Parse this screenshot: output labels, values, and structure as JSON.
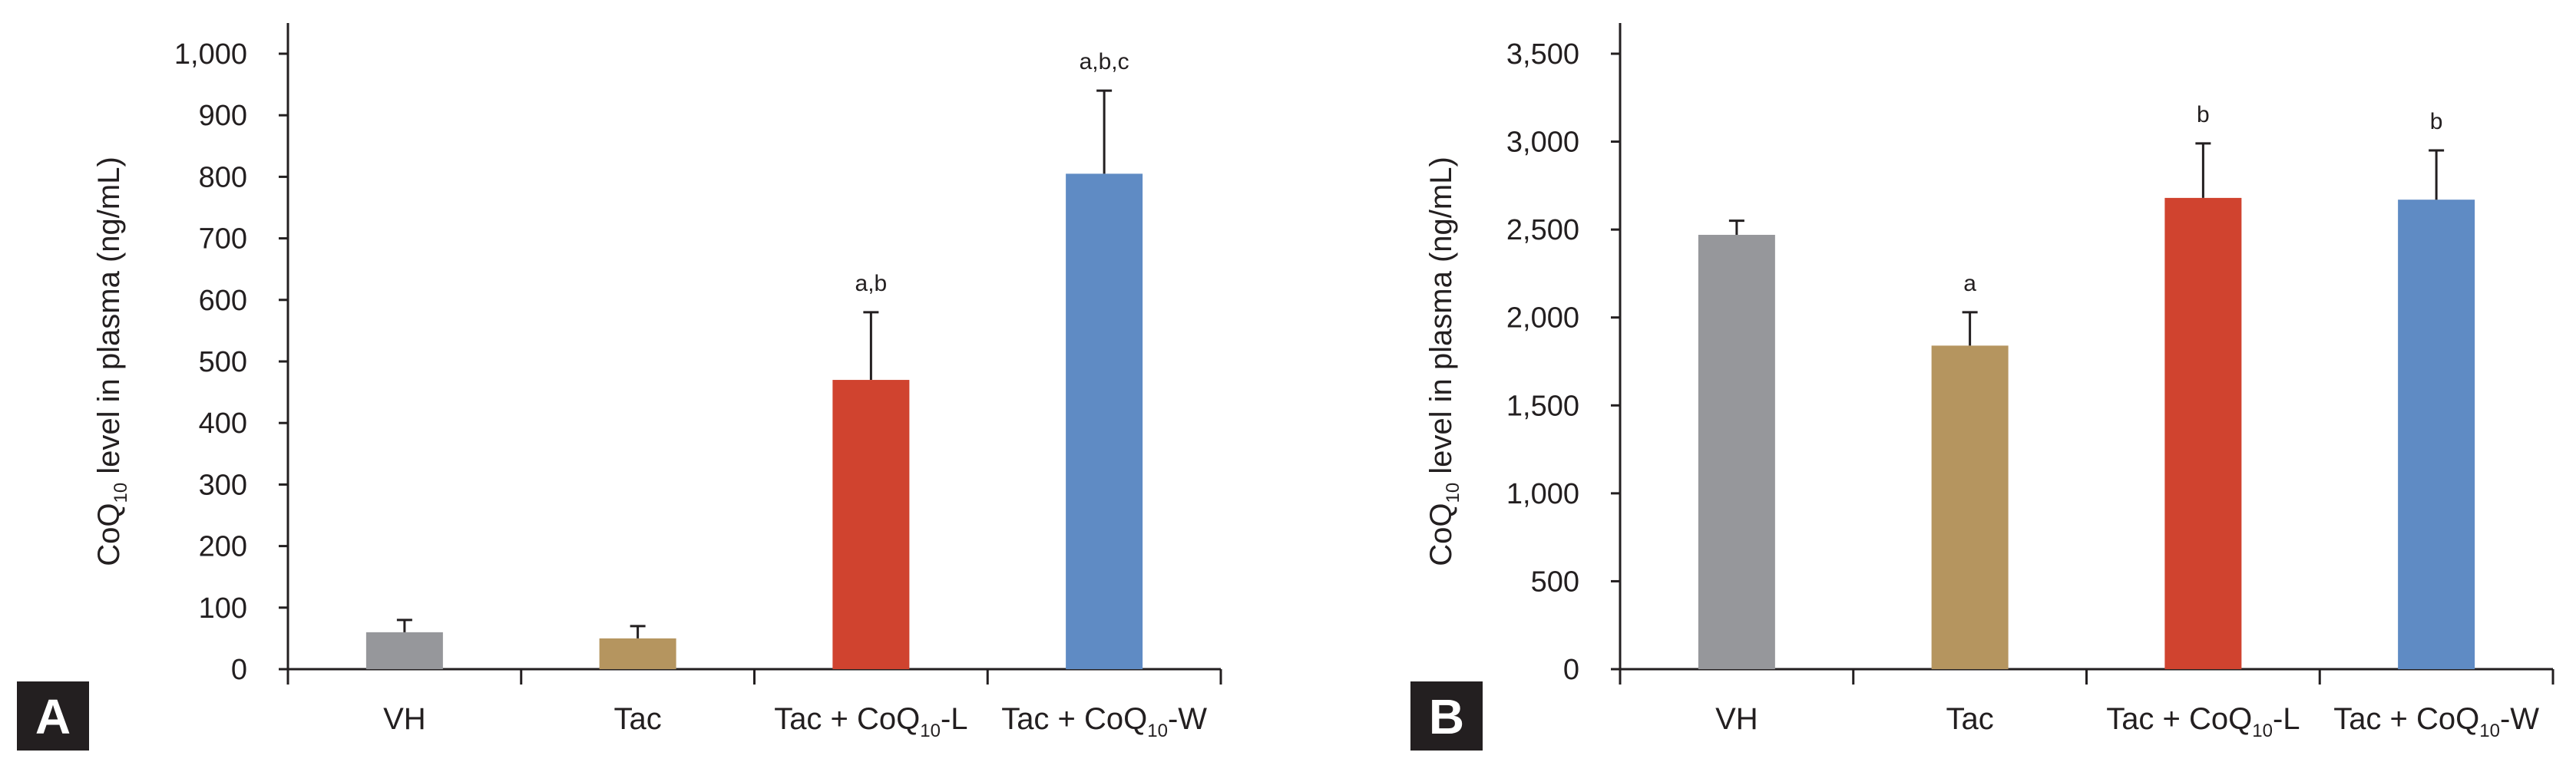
{
  "colors": {
    "vh": "#96979b",
    "tac": "#b5955f",
    "coq_l": "#d0432f",
    "coq_w": "#5f8bc4",
    "axis": "#231f20",
    "panel_bg": "#231f20"
  },
  "chart_data": [
    {
      "type": "bar",
      "panel_label": "A",
      "title": "",
      "ylabel": {
        "prefix": "CoQ",
        "sub": "10",
        "suffix": " level in plasma (ng/mL)"
      },
      "xlabel": "",
      "ylim": [
        0,
        1000
      ],
      "yticks": [
        0,
        100,
        200,
        300,
        400,
        500,
        600,
        700,
        800,
        900,
        1000
      ],
      "ytick_labels": [
        "0",
        "100",
        "200",
        "300",
        "400",
        "500",
        "600",
        "700",
        "800",
        "900",
        "1,000"
      ],
      "categories": [
        {
          "text": "VH"
        },
        {
          "text": "Tac"
        },
        {
          "prefix": "Tac + CoQ",
          "sub": "10",
          "suffix": "-L"
        },
        {
          "prefix": "Tac + CoQ",
          "sub": "10",
          "suffix": "-W"
        }
      ],
      "values": [
        60,
        50,
        470,
        805
      ],
      "errors": [
        20,
        20,
        110,
        135
      ],
      "annotations": [
        "",
        "",
        "a,b",
        "a,b,c"
      ],
      "bar_colors": [
        "vh",
        "tac",
        "coq_l",
        "coq_w"
      ]
    },
    {
      "type": "bar",
      "panel_label": "B",
      "title": "",
      "ylabel": {
        "prefix": "CoQ",
        "sub": "10",
        "suffix": " level in plasma (ng/mL)"
      },
      "xlabel": "",
      "ylim": [
        0,
        3500
      ],
      "yticks": [
        0,
        500,
        1000,
        1500,
        2000,
        2500,
        3000,
        3500
      ],
      "ytick_labels": [
        "0",
        "500",
        "1,000",
        "1,500",
        "2,000",
        "2,500",
        "3,000",
        "3,500"
      ],
      "categories": [
        {
          "text": "VH"
        },
        {
          "text": "Tac"
        },
        {
          "prefix": "Tac + CoQ",
          "sub": "10",
          "suffix": "-L"
        },
        {
          "prefix": "Tac + CoQ",
          "sub": "10",
          "suffix": "-W"
        }
      ],
      "values": [
        2470,
        1840,
        2680,
        2670
      ],
      "errors": [
        80,
        190,
        310,
        280
      ],
      "annotations": [
        "",
        "a",
        "b",
        "b"
      ],
      "bar_colors": [
        "vh",
        "tac",
        "coq_l",
        "coq_w"
      ]
    }
  ]
}
